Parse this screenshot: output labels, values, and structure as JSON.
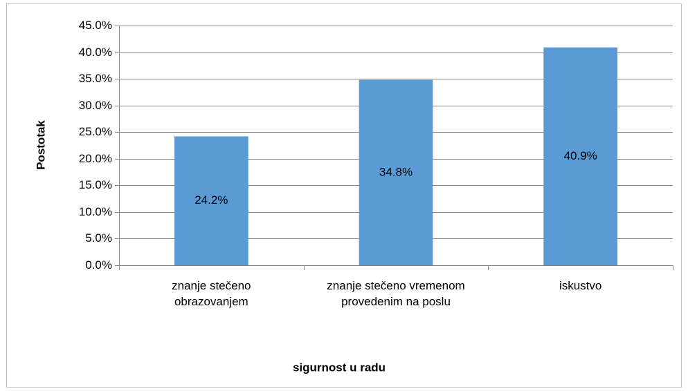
{
  "chart_data": {
    "type": "bar",
    "x_label": "sigurnost u radu",
    "y_label": "Postotak",
    "categories": [
      "znanje stečeno obrazovanjem",
      "znanje stečeno vremenom provedenim na poslu",
      "iskustvo"
    ],
    "values": [
      24.2,
      34.8,
      40.9
    ],
    "value_labels": [
      "24.2%",
      "34.8%",
      "40.9%"
    ],
    "color": "#5b9bd5",
    "ylim": [
      0,
      45
    ],
    "yticks": [
      {
        "value": 0,
        "label": "0.0%"
      },
      {
        "value": 5,
        "label": "5.0%"
      },
      {
        "value": 10,
        "label": "10.0%"
      },
      {
        "value": 15,
        "label": "15.0%"
      },
      {
        "value": 20,
        "label": "20.0%"
      },
      {
        "value": 25,
        "label": "25.0%"
      },
      {
        "value": 30,
        "label": "30.0%"
      },
      {
        "value": 35,
        "label": "35.0%"
      },
      {
        "value": 40,
        "label": "40.0%"
      },
      {
        "value": 45,
        "label": "45.0%"
      }
    ],
    "grid": true
  }
}
